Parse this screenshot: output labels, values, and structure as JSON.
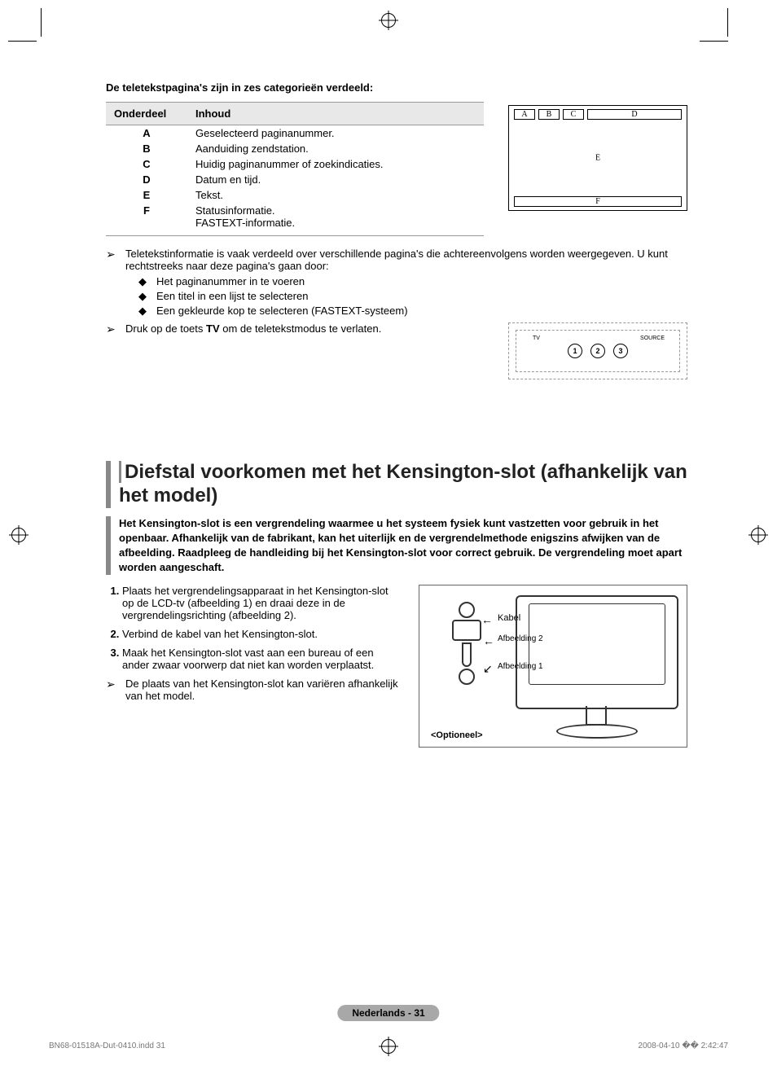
{
  "intro": "De teletekstpagina's zijn in zes categorieën verdeeld:",
  "table": {
    "headers": [
      "Onderdeel",
      "Inhoud"
    ],
    "rows": [
      {
        "part": "A",
        "content": "Geselecteerd paginanummer."
      },
      {
        "part": "B",
        "content": "Aanduiding zendstation."
      },
      {
        "part": "C",
        "content": "Huidig paginanummer of zoekindicaties."
      },
      {
        "part": "D",
        "content": "Datum en tijd."
      },
      {
        "part": "E",
        "content": "Tekst."
      },
      {
        "part": "F",
        "content": "Statusinformatie.\nFASTEXT-informatie."
      }
    ]
  },
  "teletext_labels": {
    "a": "A",
    "b": "B",
    "c": "C",
    "d": "D",
    "e": "E",
    "f": "F"
  },
  "note1": "Teletekstinformatie is vaak verdeeld over verschillende pagina's die achtereenvolgens worden weergegeven. U kunt rechtstreeks naar deze pagina's gaan door:",
  "bullets": [
    "Het paginanummer in te voeren",
    "Een titel in een lijst te selecteren",
    "Een gekleurde kop te selecteren (FASTEXT-systeem)"
  ],
  "note2_pre": "Druk op de toets ",
  "note2_bold": "TV",
  "note2_post": " om de teletekstmodus te verlaten.",
  "remote": {
    "tv": "TV",
    "source": "SOURCE",
    "n1": "1",
    "n2": "2",
    "n3": "3"
  },
  "section_title": "Diefstal voorkomen met het Kensington-slot (afhankelijk van het model)",
  "section_intro": "Het Kensington-slot is een vergrendeling waarmee u het systeem fysiek kunt vastzetten voor gebruik in het openbaar. Afhankelijk van de fabrikant, kan het uiterlijk en de vergrendelmethode enigszins afwijken van de afbeelding. Raadpleeg de handleiding bij het Kensington-slot voor correct gebruik. De vergrendeling moet apart worden aangeschaft.",
  "instructions": [
    "Plaats het vergrendelingsapparaat in het Kensington-slot op de LCD-tv (afbeelding 1) en draai deze in de vergrendelingsrichting (afbeelding 2).",
    "Verbind de kabel van het Kensington-slot.",
    "Maak het Kensington-slot vast aan een bureau of een ander zwaar voorwerp dat niet kan worden verplaatst."
  ],
  "note3": "De plaats van het Kensington-slot kan variëren afhankelijk van het model.",
  "tv_labels": {
    "kabel": "Kabel",
    "afb2": "Afbeelding 2",
    "afb1": "Afbeelding 1",
    "optioneel": "<Optioneel>"
  },
  "footer_pill": "Nederlands - 31",
  "doc_footer": {
    "left": "BN68-01518A-Dut-0410.indd   31",
    "right": "2008-04-10   �� 2:42:47"
  },
  "colors": {
    "text": "#000000",
    "header_bg": "#e8e8e8",
    "rule": "#999999",
    "pill_bg": "#a8a8a8",
    "sidebar": "#888888",
    "footer_text": "#777777"
  }
}
